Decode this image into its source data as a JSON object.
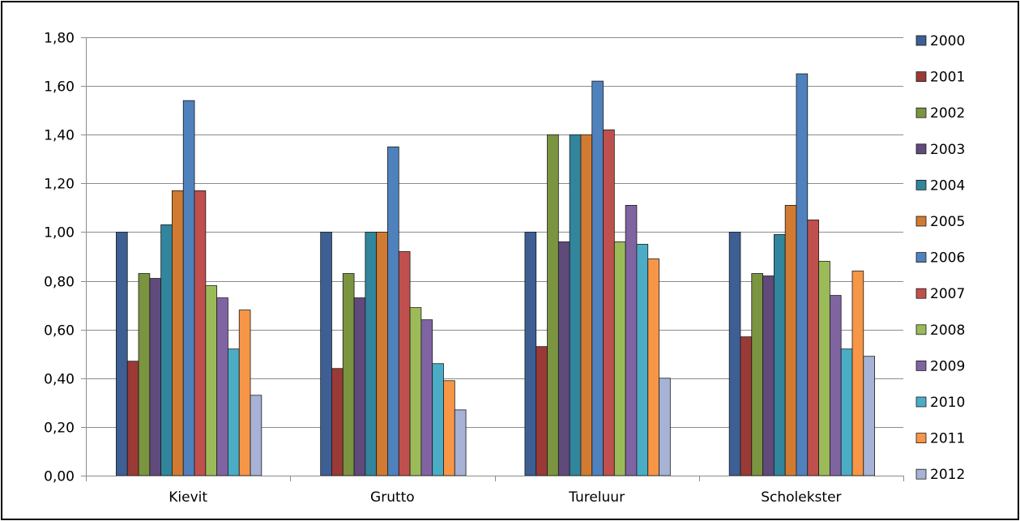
{
  "chart_data": {
    "type": "bar",
    "title": "",
    "xlabel": "",
    "ylabel": "",
    "ylim": [
      0,
      1.8
    ],
    "ytick_step": 0.2,
    "ytick_labels": [
      "0,00",
      "0,20",
      "0,40",
      "0,60",
      "0,80",
      "1,00",
      "1,20",
      "1,40",
      "1,60",
      "1,80"
    ],
    "grid": "horizontal",
    "legend_position": "right",
    "categories": [
      "Kievit",
      "Grutto",
      "Tureluur",
      "Scholekster"
    ],
    "series": [
      {
        "name": "2000",
        "color": "#3d5f93",
        "values": [
          1.0,
          1.0,
          1.0,
          1.0
        ]
      },
      {
        "name": "2001",
        "color": "#9a3a37",
        "values": [
          0.47,
          0.44,
          0.53,
          0.57
        ]
      },
      {
        "name": "2002",
        "color": "#7a9440",
        "values": [
          0.83,
          0.83,
          1.4,
          0.83
        ]
      },
      {
        "name": "2003",
        "color": "#604a7b",
        "values": [
          0.81,
          0.73,
          0.96,
          0.82
        ]
      },
      {
        "name": "2004",
        "color": "#31859c",
        "values": [
          1.03,
          1.0,
          1.4,
          0.99
        ]
      },
      {
        "name": "2005",
        "color": "#d07b31",
        "values": [
          1.17,
          1.0,
          1.4,
          1.11
        ]
      },
      {
        "name": "2006",
        "color": "#4f81bd",
        "values": [
          1.54,
          1.35,
          1.62,
          1.65
        ]
      },
      {
        "name": "2007",
        "color": "#c0504d",
        "values": [
          1.17,
          0.92,
          1.42,
          1.05
        ]
      },
      {
        "name": "2008",
        "color": "#9bbb59",
        "values": [
          0.78,
          0.69,
          0.96,
          0.88
        ]
      },
      {
        "name": "2009",
        "color": "#8064a2",
        "values": [
          0.73,
          0.64,
          1.11,
          0.74
        ]
      },
      {
        "name": "2010",
        "color": "#4bacc6",
        "values": [
          0.52,
          0.46,
          0.95,
          0.52
        ]
      },
      {
        "name": "2011",
        "color": "#f79646",
        "values": [
          0.68,
          0.39,
          0.89,
          0.84
        ]
      },
      {
        "name": "2012",
        "color": "#a6b3d6",
        "values": [
          0.33,
          0.27,
          0.4,
          0.49
        ]
      }
    ]
  }
}
